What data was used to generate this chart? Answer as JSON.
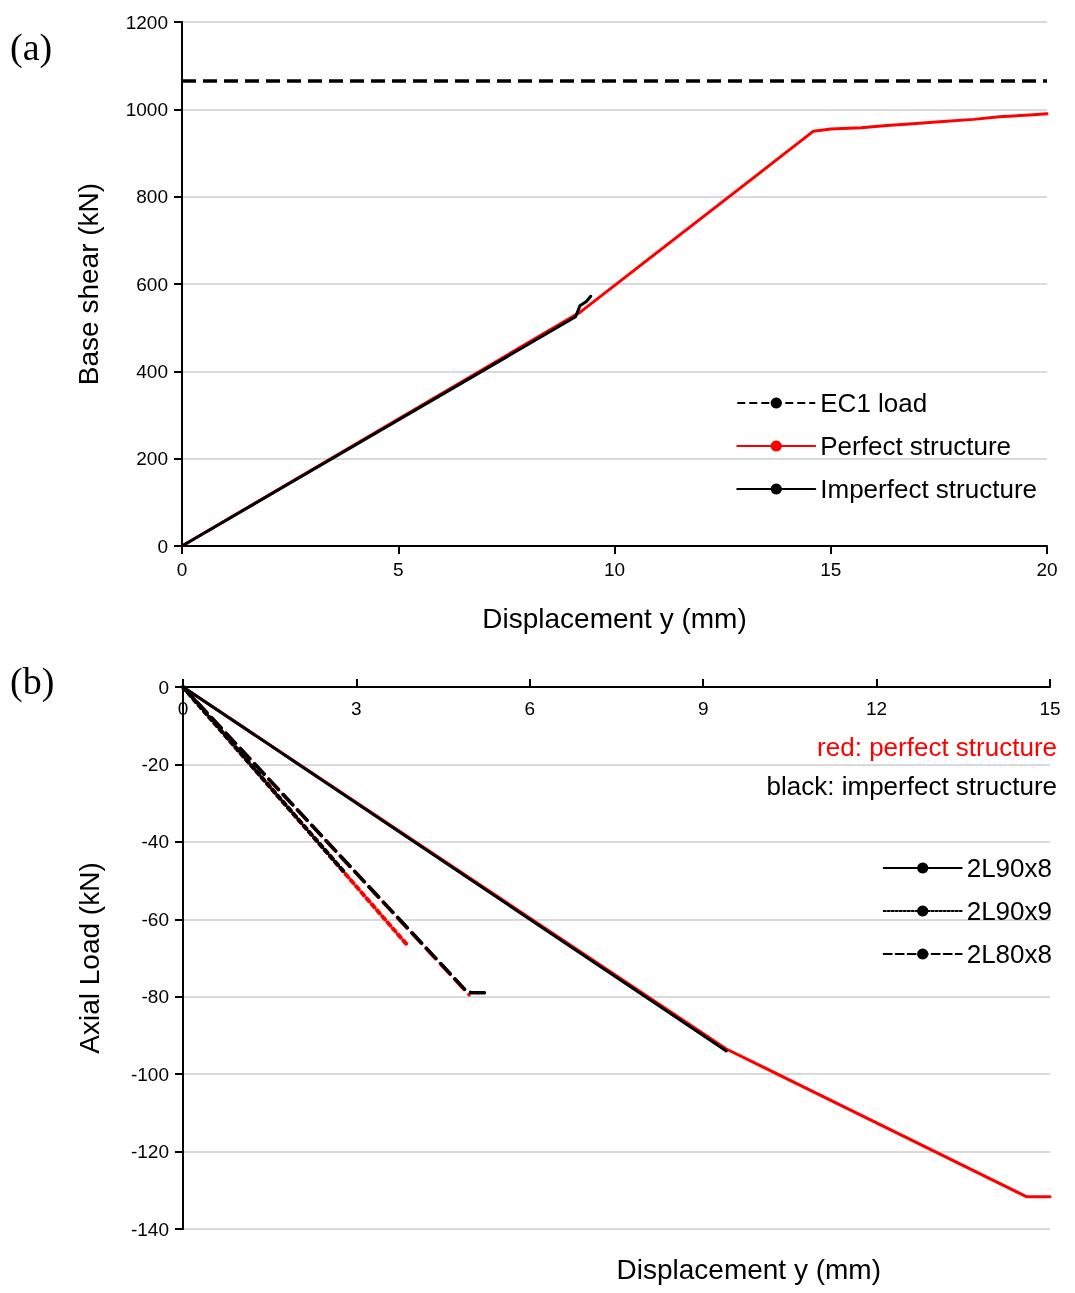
{
  "chart_data": [
    {
      "type": "line",
      "xlabel": "Displacement y (mm)",
      "ylabel": "Base shear (kN)",
      "xlim": [
        0,
        20
      ],
      "xticks": [
        0,
        5,
        10,
        15,
        20
      ],
      "ylim": [
        0,
        1200
      ],
      "yticks": [
        0,
        200,
        400,
        600,
        800,
        1000,
        1200
      ],
      "grid": "y",
      "legend": "bottom right",
      "annotations": [
        "(a)"
      ],
      "ref_lines": [
        {
          "axis": "y",
          "value": 1065,
          "label": "EC1 load",
          "color": "#000000",
          "line_style": "dashed"
        }
      ],
      "series": [
        {
          "name": "Perfect structure",
          "color": "#ff0000",
          "line_style": "solid",
          "x": [
            0,
            9.2,
            14.6,
            15,
            15.7,
            16.3,
            16.9,
            17.6,
            18.3,
            18.9,
            19.6,
            20
          ],
          "values": [
            0,
            535,
            950,
            955,
            958,
            963,
            967,
            972,
            977,
            983,
            987,
            990
          ]
        },
        {
          "name": "Imperfect structure",
          "color": "#000000",
          "line_style": "solid",
          "x": [
            0,
            9.1,
            9.2,
            9.35,
            9.45
          ],
          "values": [
            0,
            525,
            550,
            560,
            572
          ]
        }
      ]
    },
    {
      "type": "line",
      "xlabel": "Displacement y (mm)",
      "ylabel": "Axial Load (kN)",
      "xlim": [
        0,
        15
      ],
      "xticks": [
        0,
        3,
        6,
        9,
        12,
        15
      ],
      "ylim": [
        -140,
        0
      ],
      "yticks": [
        -140,
        -120,
        -100,
        -80,
        -60,
        -40,
        -20,
        0
      ],
      "grid": "y",
      "legend": "right",
      "annotations": [
        "(b)",
        "red: perfect structure",
        "black: imperfect structure"
      ],
      "series": [
        {
          "color": "#ff0000",
          "line_style": "solid",
          "x": [
            0,
            9.4,
            14.6,
            15
          ],
          "values": [
            0,
            -93.5,
            -131.7,
            -131.7
          ]
        },
        {
          "color": "#ff0000",
          "line_style": "dotted",
          "x": [
            0,
            3.9
          ],
          "values": [
            0,
            -67
          ]
        },
        {
          "color": "#ff0000",
          "line_style": "dashed",
          "x": [
            0,
            4.95
          ],
          "values": [
            0,
            -79.5
          ]
        },
        {
          "name": "2L90x8",
          "color": "#000000",
          "line_style": "solid",
          "x": [
            0,
            9.4
          ],
          "values": [
            0,
            -94
          ]
        },
        {
          "name": "2L90x9",
          "color": "#000000",
          "line_style": "dotted",
          "x": [
            0,
            2.8
          ],
          "values": [
            0,
            -48
          ]
        },
        {
          "name": "2L80x8",
          "color": "#000000",
          "line_style": "dashed",
          "x": [
            0,
            4.9,
            5.0,
            5.28
          ],
          "values": [
            0,
            -78.5,
            -79,
            -79
          ]
        }
      ]
    }
  ]
}
